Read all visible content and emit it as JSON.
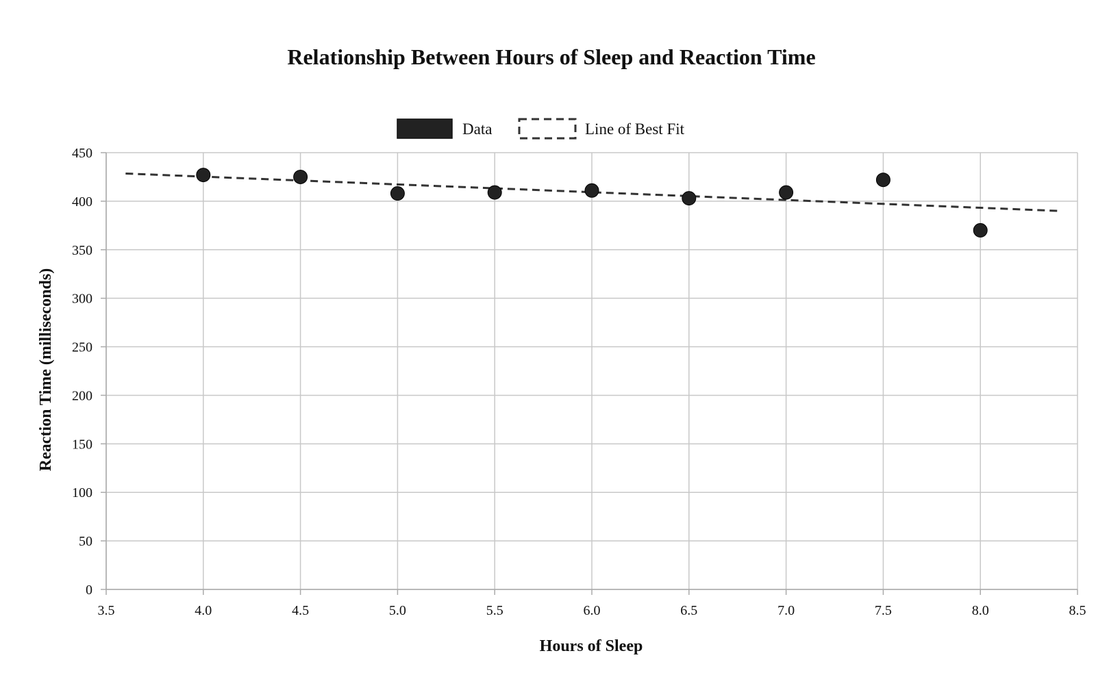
{
  "chart_data": {
    "type": "scatter",
    "title": "Relationship Between Hours of Sleep and Reaction Time",
    "xlabel": "Hours of Sleep",
    "ylabel": "Reaction Time (milliseconds)",
    "xlim": [
      3.5,
      8.5
    ],
    "ylim": [
      0,
      450
    ],
    "x_ticks": [
      "3.5",
      "4.0",
      "4.5",
      "5.0",
      "5.5",
      "6.0",
      "6.5",
      "7.0",
      "7.5",
      "8.0",
      "8.5"
    ],
    "y_ticks": [
      "0",
      "50",
      "100",
      "150",
      "200",
      "250",
      "300",
      "350",
      "400",
      "450"
    ],
    "grid": true,
    "legend_position": "top-center",
    "series": [
      {
        "name": "Data",
        "kind": "scatter",
        "color": "#222222",
        "x": [
          4.0,
          4.5,
          5.0,
          5.5,
          6.0,
          6.5,
          7.0,
          7.5,
          8.0
        ],
        "y": [
          427,
          425,
          408,
          409,
          411,
          403,
          409,
          422,
          370
        ]
      },
      {
        "name": "Line of Best Fit",
        "kind": "line",
        "style": "dashed",
        "color": "#333333",
        "x": [
          3.6,
          8.4
        ],
        "y": [
          428.5,
          390
        ]
      }
    ]
  }
}
